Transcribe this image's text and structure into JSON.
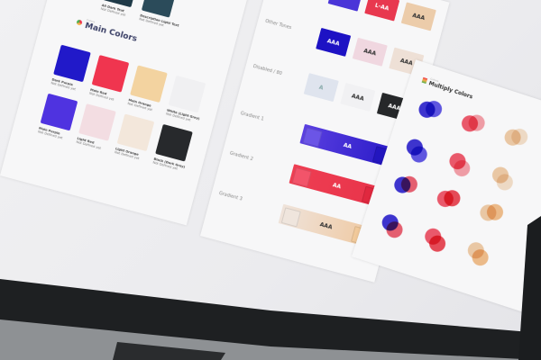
{
  "colors": {
    "dark_purple": "#2119c9",
    "main_red": "#f0354f",
    "main_orange": "#f3d3a0",
    "white_grey": "#f0f0f2",
    "main_purple": "#4f33e0",
    "light_red": "#f3dde2",
    "light_orange": "#f3e7db",
    "black": "#27292c",
    "dark_text": "#1f3a48",
    "desc_text": "#2b4b5a",
    "disabled_blue": "#dfe4ee",
    "peach": "#eccca8"
  },
  "left_card": {
    "top_swatches": [
      {
        "name": "All Dark Text",
        "note": "Not Defined yet"
      },
      {
        "name": "Description Light Text",
        "note": "Not Defined yet"
      }
    ],
    "section_kicker": "Colors",
    "section_title": "Main Colors",
    "swatches": [
      {
        "name": "Dark Purple",
        "note": "Not Defined yet"
      },
      {
        "name": "Main Red",
        "note": "Not Defined yet"
      },
      {
        "name": "Main Orange",
        "note": "Not Defined yet"
      },
      {
        "name": "White (Light Grey)",
        "note": "Not Defined yet"
      },
      {
        "name": "Main Purple",
        "note": "Not Defined yet"
      },
      {
        "name": "Light Red",
        "note": "Not Defined yet"
      },
      {
        "name": "Light Orange",
        "note": "Not Defined yet"
      },
      {
        "name": "Black (Dark Grey)",
        "note": "Not Defined yet"
      }
    ]
  },
  "middle_card": {
    "rows": [
      {
        "label": "Main Colors",
        "tiles": [
          "AA",
          "L-AA",
          "AAA"
        ]
      },
      {
        "label": "Other Tones",
        "tiles": [
          "AAA",
          "AAA",
          "AAA"
        ]
      },
      {
        "label": "Disabled / 80",
        "tiles": [
          "A",
          "AAA",
          "AAA"
        ]
      }
    ],
    "gradients": [
      {
        "label": "Gradient 1",
        "text": "AA"
      },
      {
        "label": "Gradient 2",
        "text": "AA"
      },
      {
        "label": "Gradient 3",
        "text": "AAA"
      }
    ]
  },
  "right_card": {
    "kicker": "Colors",
    "title": "Multiply Colors"
  }
}
